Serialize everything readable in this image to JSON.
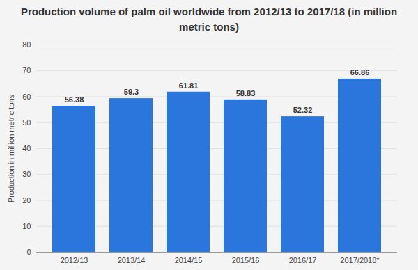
{
  "chart_data": {
    "type": "bar",
    "title": "Production volume of palm oil worldwide from 2012/13 to 2017/18 (in million metric tons)",
    "y_label": "Production in million metric tons",
    "categories": [
      "2012/13",
      "2013/14",
      "2014/15",
      "2015/16",
      "2016/17",
      "2017/2018*"
    ],
    "values": [
      56.38,
      59.3,
      61.81,
      58.83,
      52.32,
      66.86
    ],
    "color": "#2a76dd",
    "ylim": [
      0,
      80
    ],
    "yticks": [
      0,
      10,
      20,
      30,
      40,
      50,
      60,
      70,
      80
    ],
    "grid": true,
    "data_labels": true
  }
}
